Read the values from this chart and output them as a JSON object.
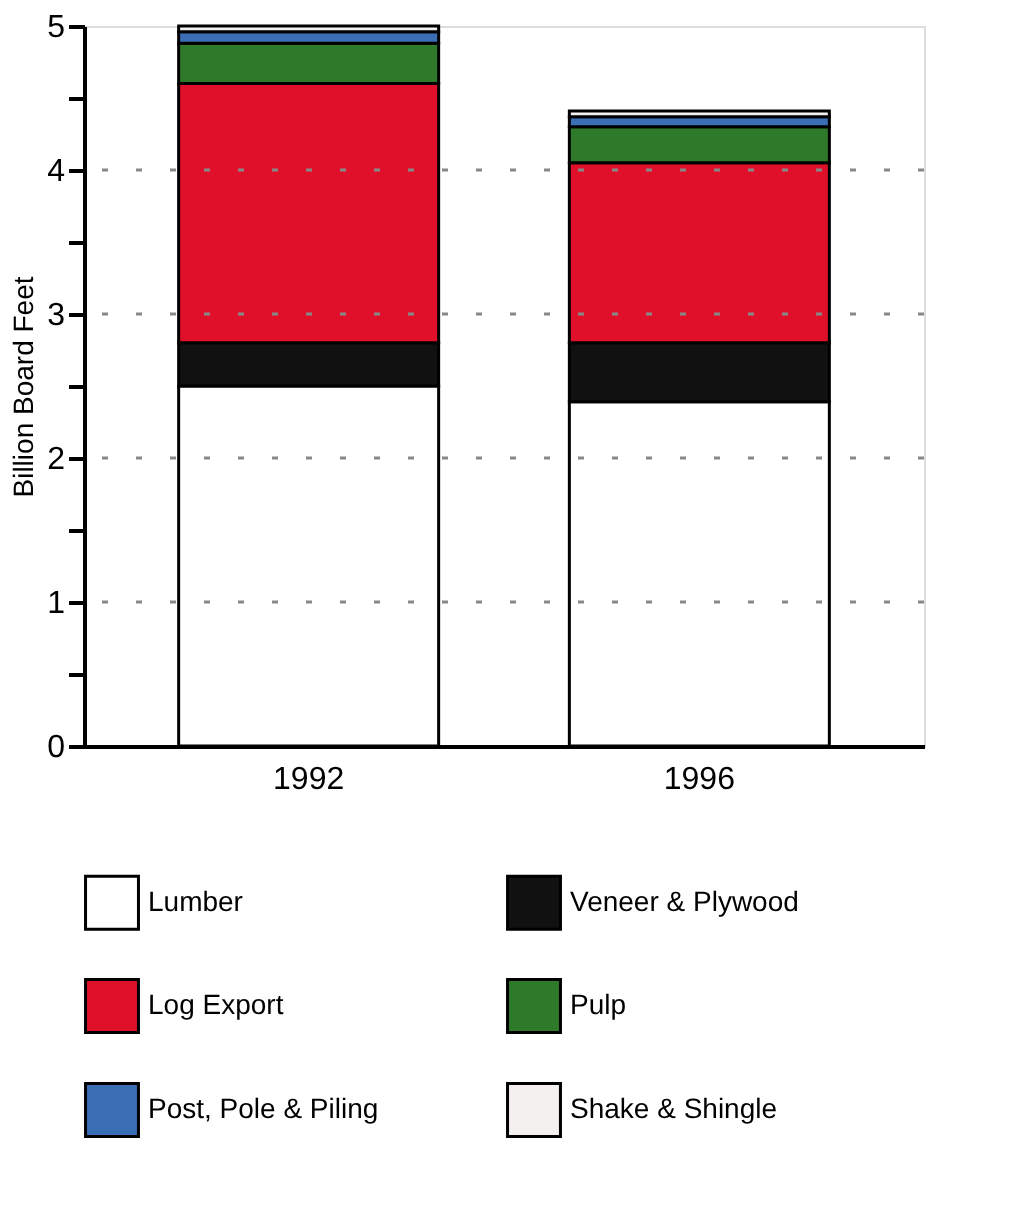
{
  "chart_data": {
    "type": "bar",
    "stacked": true,
    "ylabel": "Billion Board Feet",
    "categories": [
      "1992",
      "1996"
    ],
    "series": [
      {
        "name": "Lumber",
        "color": "#ffffff",
        "values": [
          2.5,
          2.39
        ]
      },
      {
        "name": "Veneer & Plywood",
        "color": "#111111",
        "values": [
          0.3,
          0.41
        ]
      },
      {
        "name": "Log Export",
        "color": "#e0102a",
        "values": [
          1.8,
          1.25
        ]
      },
      {
        "name": "Pulp",
        "color": "#2e7a2a",
        "values": [
          0.28,
          0.25
        ]
      },
      {
        "name": "Post, Pole & Piling",
        "color": "#3a6fb5",
        "values": [
          0.08,
          0.07
        ]
      },
      {
        "name": "Shake & Shingle",
        "color": "#f4f0f0",
        "values": [
          0.04,
          0.04
        ]
      }
    ],
    "ylim": [
      0,
      5
    ],
    "yticks": [
      0,
      {
        "value": 0.5,
        "label": null
      },
      1,
      {
        "value": 1.5,
        "label": null
      },
      2,
      {
        "value": 2.5,
        "label": null
      },
      3,
      {
        "value": 3.5,
        "label": null
      },
      4,
      {
        "value": 4.5,
        "label": null
      },
      5
    ],
    "grid": "y",
    "legend": "bottom"
  }
}
